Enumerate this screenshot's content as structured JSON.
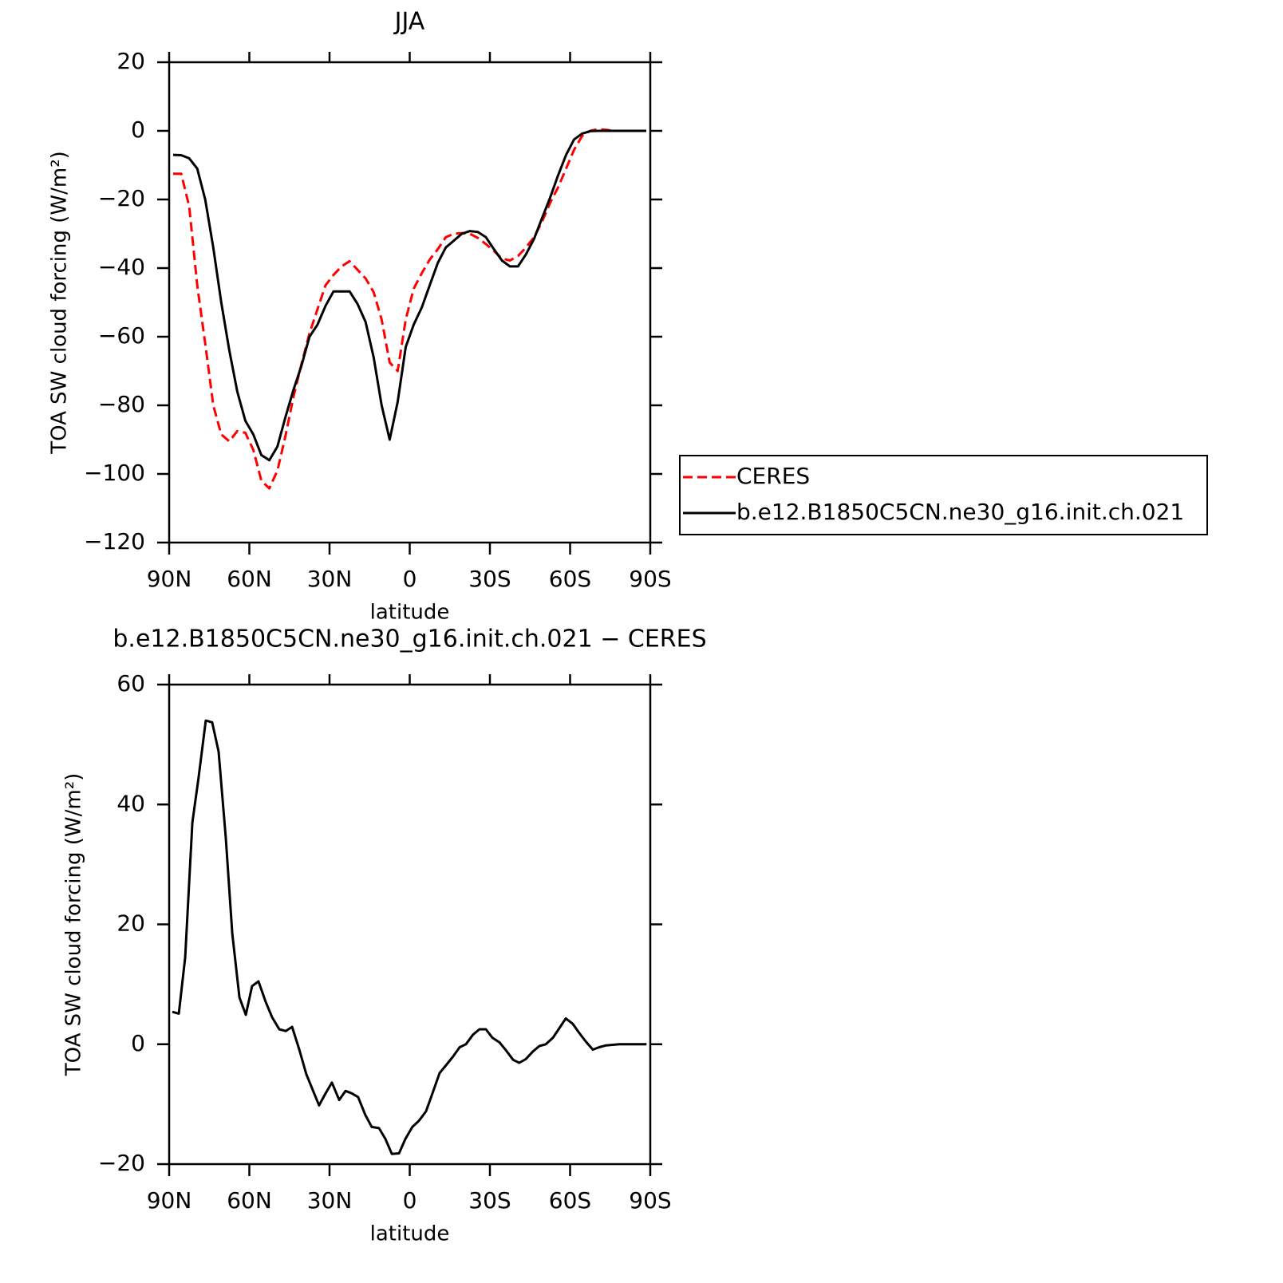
{
  "chart_data": [
    {
      "type": "line",
      "title": "JJA",
      "xlabel": "latitude",
      "ylabel": "TOA SW cloud forcing (W/m²)",
      "x": [
        88.5,
        85.5,
        82.5,
        79.5,
        76.5,
        73.5,
        70.5,
        67.5,
        64.5,
        61.5,
        58.5,
        55.5,
        52.5,
        49.5,
        46.5,
        43.5,
        40.5,
        37.5,
        34.5,
        31.5,
        28.5,
        25.5,
        22.5,
        19.5,
        16.5,
        13.5,
        10.5,
        7.5,
        4.5,
        1.5,
        -1.5,
        -4.5,
        -7.5,
        -10.5,
        -13.5,
        -16.5,
        -19.5,
        -22.5,
        -25.5,
        -28.5,
        -31.5,
        -34.5,
        -37.5,
        -40.5,
        -43.5,
        -46.5,
        -49.5,
        -52.5,
        -55.5,
        -58.5,
        -61.5,
        -64.5,
        -67.5,
        -70.5,
        -73.5,
        -76.5,
        -79.5,
        -82.5,
        -85.5,
        -88.5
      ],
      "series": [
        {
          "name": "CERES",
          "color": "#ff0000",
          "linestyle": "dashed",
          "values": [
            -12.5,
            -12.5,
            -22,
            -45,
            -62,
            -80,
            -88.5,
            -90.5,
            -87.5,
            -88,
            -93,
            -102,
            -104.2,
            -99,
            -89,
            -77.5,
            -68,
            -59,
            -52,
            -45,
            -42,
            -39.5,
            -38,
            -40.5,
            -43,
            -47,
            -55,
            -67.5,
            -70,
            -55,
            -46,
            -41.5,
            -37.5,
            -34.5,
            -31,
            -30,
            -29.8,
            -30,
            -31.2,
            -33,
            -35,
            -37.2,
            -37.8,
            -36.5,
            -34,
            -31,
            -26.5,
            -21,
            -16.5,
            -11,
            -5.5,
            -1.5,
            0,
            0.5,
            0.3,
            0,
            0,
            0,
            0,
            0
          ]
        },
        {
          "name": "b.e12.B1850C5CN.ne30_g16.init.ch.021",
          "color": "#000000",
          "linestyle": "solid",
          "values": [
            -7,
            -7.1,
            -8,
            -11,
            -20,
            -34,
            -50,
            -64,
            -76,
            -84.5,
            -88.5,
            -94.5,
            -96,
            -92,
            -83.5,
            -75.5,
            -68.5,
            -60,
            -56.5,
            -51,
            -46.8,
            -46.8,
            -46.8,
            -50.5,
            -55.7,
            -66,
            -80,
            -90,
            -79,
            -63,
            -56.5,
            -51.5,
            -45,
            -38.5,
            -34,
            -32,
            -30,
            -29.2,
            -29.5,
            -31,
            -34.5,
            -37.8,
            -39.5,
            -39.5,
            -36,
            -31.5,
            -25.5,
            -19.5,
            -13,
            -7,
            -2.5,
            -0.8,
            -0.1,
            0,
            0,
            0,
            0,
            0,
            0,
            0
          ]
        }
      ],
      "xlim": [
        90,
        -90
      ],
      "xticks": [
        {
          "value": 90,
          "label": "90N"
        },
        {
          "value": 60,
          "label": "60N"
        },
        {
          "value": 30,
          "label": "30N"
        },
        0,
        {
          "value": -30,
          "label": "30S"
        },
        {
          "value": -60,
          "label": "60S"
        },
        {
          "value": -90,
          "label": "90S"
        }
      ],
      "ylim": [
        -120,
        20
      ],
      "yticks": [
        {
          "value": -120,
          "label": "−120"
        },
        {
          "value": -100,
          "label": "−100"
        },
        {
          "value": -80,
          "label": "−80"
        },
        {
          "value": -60,
          "label": "−60"
        },
        {
          "value": -40,
          "label": "−40"
        },
        {
          "value": -20,
          "label": "−20"
        },
        0,
        20
      ],
      "legend": "right"
    },
    {
      "type": "line",
      "title": "b.e12.B1850C5CN.ne30_g16.init.ch.021 − CERES",
      "xlabel": "latitude",
      "ylabel": "TOA SW cloud forcing (W/m²)",
      "x": [
        88.8,
        86.4,
        84.0,
        81.3,
        79.0,
        76.3,
        73.9,
        71.5,
        68.8,
        66.4,
        63.7,
        61.3,
        59.0,
        56.6,
        53.9,
        51.5,
        48.8,
        46.4,
        44.0,
        41.3,
        38.7,
        33.9,
        31.5,
        29.1,
        26.4,
        24.0,
        21.6,
        19.3,
        16.6,
        14.2,
        11.5,
        9.1,
        6.7,
        4.0,
        1.6,
        -1.0,
        -3.4,
        -6.1,
        -8.5,
        -11.2,
        -13.6,
        -16.3,
        -18.7,
        -21.0,
        -23.7,
        -26.1,
        -28.5,
        -30.9,
        -33.6,
        -36.0,
        -38.7,
        -41.0,
        -43.4,
        -46.1,
        -48.5,
        -50.9,
        -53.6,
        -56.0,
        -58.4,
        -61.0,
        -63.4,
        -65.8,
        -68.5,
        -70.9,
        -73.3,
        -78.5,
        -88.6
      ],
      "values": [
        5.4,
        5.1,
        14.5,
        37,
        44.4,
        54,
        53.7,
        48.8,
        34.4,
        18.5,
        7.8,
        4.9,
        9.7,
        10.5,
        7.1,
        4.5,
        2.5,
        2.2,
        2.9,
        -0.9,
        -5,
        -10.2,
        -8.2,
        -6.4,
        -9.3,
        -7.8,
        -8.2,
        -8.8,
        -11.8,
        -13.8,
        -14,
        -15.8,
        -18.3,
        -18.2,
        -15.8,
        -13.8,
        -12.8,
        -11.2,
        -8.2,
        -4.8,
        -3.5,
        -2,
        -0.5,
        0,
        1.6,
        2.5,
        2.5,
        1.1,
        0.3,
        -1,
        -2.6,
        -3.1,
        -2.5,
        -1.2,
        -0.3,
        0,
        1.1,
        2.7,
        4.3,
        3.4,
        1.9,
        0.5,
        -0.9,
        -0.5,
        -0.2,
        0,
        0
      ],
      "color": "#000000",
      "xlim": [
        90,
        -90
      ],
      "xticks": [
        {
          "value": 90,
          "label": "90N"
        },
        {
          "value": 60,
          "label": "60N"
        },
        {
          "value": 30,
          "label": "30N"
        },
        0,
        {
          "value": -30,
          "label": "30S"
        },
        {
          "value": -60,
          "label": "60S"
        },
        {
          "value": -90,
          "label": "90S"
        }
      ],
      "ylim": [
        -20,
        60
      ],
      "yticks": [
        {
          "value": -20,
          "label": "−20"
        },
        0,
        20,
        40,
        60
      ]
    }
  ]
}
